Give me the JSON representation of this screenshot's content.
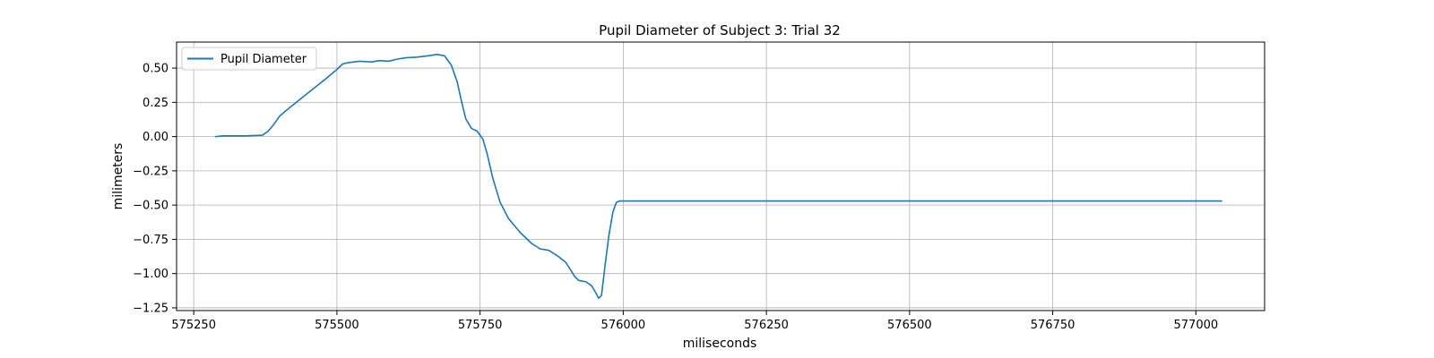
{
  "chart_data": {
    "type": "line",
    "title": "Pupil Diameter of Subject 3: Trial 32",
    "xlabel": "miliseconds",
    "ylabel": "milimeters",
    "xlim": [
      575220,
      577120
    ],
    "ylim": [
      -1.27,
      0.69
    ],
    "x_ticks": [
      575250,
      575500,
      575750,
      576000,
      576250,
      576500,
      576750,
      577000
    ],
    "x_tick_labels": [
      "575250",
      "575500",
      "575750",
      "576000",
      "576250",
      "576500",
      "576750",
      "577000"
    ],
    "y_ticks": [
      0.5,
      0.25,
      0.0,
      -0.25,
      -0.5,
      -0.75,
      -1.0,
      -1.25
    ],
    "y_tick_labels": [
      "0.50",
      "0.25",
      "0.00",
      "−0.25",
      "−0.50",
      "−0.75",
      "−1.00",
      "−1.25"
    ],
    "grid": true,
    "legend": "upper-left",
    "series": [
      {
        "name": "Pupil Diameter",
        "color": "#1f77b4",
        "x": [
          575288,
          575300,
          575340,
          575370,
          575380,
          575390,
          575400,
          575420,
          575450,
          575480,
          575500,
          575510,
          575520,
          575540,
          575560,
          575575,
          575590,
          575605,
          575620,
          575640,
          575660,
          575675,
          575688,
          575700,
          575710,
          575718,
          575725,
          575735,
          575745,
          575755,
          575762,
          575772,
          575785,
          575800,
          575820,
          575840,
          575855,
          575870,
          575885,
          575900,
          575915,
          575922,
          575935,
          575945,
          575952,
          575957,
          575962,
          575968,
          575975,
          575982,
          575988,
          575994,
          576000,
          576005,
          576010,
          576050,
          576200,
          576500,
          576800,
          577045
        ],
        "y": [
          0.0,
          0.005,
          0.005,
          0.01,
          0.04,
          0.09,
          0.15,
          0.22,
          0.32,
          0.42,
          0.49,
          0.53,
          0.54,
          0.55,
          0.545,
          0.555,
          0.55,
          0.565,
          0.575,
          0.58,
          0.59,
          0.6,
          0.59,
          0.52,
          0.4,
          0.25,
          0.13,
          0.06,
          0.04,
          -0.02,
          -0.12,
          -0.3,
          -0.48,
          -0.6,
          -0.7,
          -0.78,
          -0.82,
          -0.83,
          -0.87,
          -0.92,
          -1.02,
          -1.05,
          -1.06,
          -1.09,
          -1.14,
          -1.18,
          -1.16,
          -0.95,
          -0.72,
          -0.55,
          -0.48,
          -0.47,
          -0.47,
          -0.47,
          -0.47,
          -0.47,
          -0.47,
          -0.47,
          -0.47,
          -0.47
        ]
      }
    ]
  }
}
